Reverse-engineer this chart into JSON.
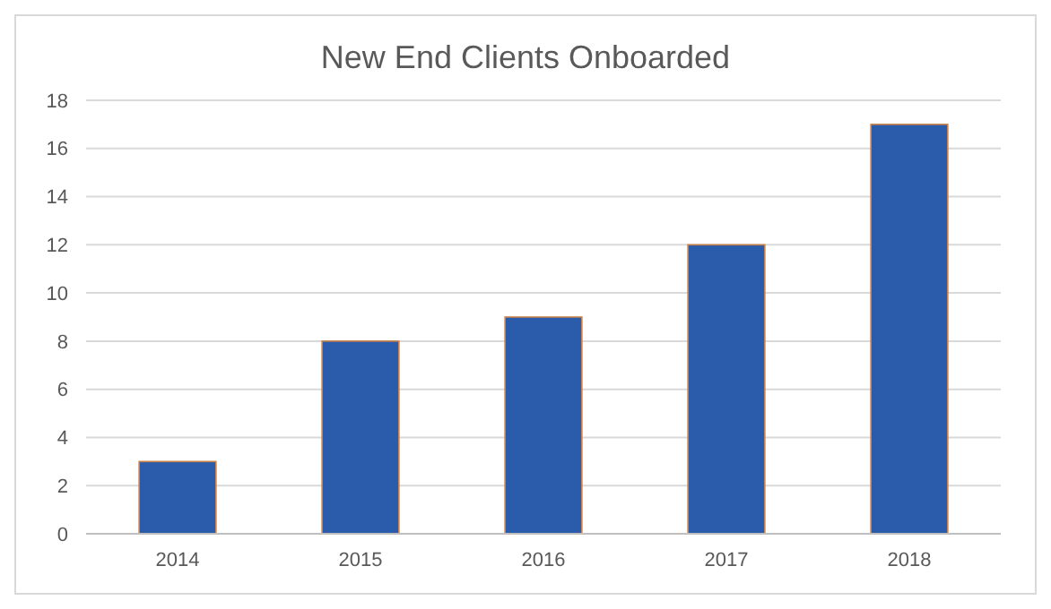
{
  "chart_data": {
    "type": "bar",
    "title": "New End Clients Onboarded",
    "categories": [
      "2014",
      "2015",
      "2016",
      "2017",
      "2018"
    ],
    "values": [
      3,
      8,
      9,
      12,
      17
    ],
    "color": "#2b5bab",
    "ylim": [
      0,
      18
    ],
    "yticks": [
      0,
      2,
      4,
      6,
      8,
      10,
      12,
      14,
      16,
      18
    ],
    "grid": "y"
  }
}
